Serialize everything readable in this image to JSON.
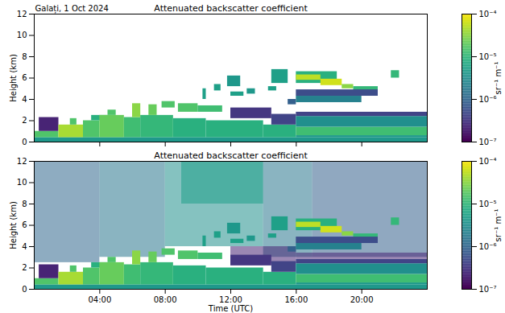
{
  "chart_data": [
    {
      "type": "heatmap",
      "title": "Attenuated backscatter coefficient",
      "annotation": "Galați, 1 Oct 2024",
      "ylabel": "Height (km)",
      "xlim": [
        0,
        24
      ],
      "xticks": [
        {
          "value": 4,
          "label": "04:00"
        },
        {
          "value": 8,
          "label": "08:00"
        },
        {
          "value": 12,
          "label": "12:00"
        },
        {
          "value": 16,
          "label": "16:00"
        },
        {
          "value": 20,
          "label": "20:00"
        }
      ],
      "ylim": [
        0,
        12
      ],
      "yticks": [
        0,
        2,
        4,
        6,
        8,
        10,
        12
      ],
      "tick_labels": "y",
      "colorbar": {
        "label": "sr⁻¹ m⁻¹",
        "range": [
          1e-07,
          0.0001
        ],
        "log": true,
        "ticks": [
          {
            "value": 1e-07,
            "label": "10⁻⁷"
          },
          {
            "value": 1e-06,
            "label": "10⁻⁶"
          },
          {
            "value": 1e-05,
            "label": "10⁻⁵"
          },
          {
            "value": 0.0001,
            "label": "10⁻⁴"
          }
        ]
      },
      "cells": [
        {
          "x1": 0,
          "x2": 1.5,
          "y1": 0.4,
          "y2": 1.0,
          "value": 1.5e-05
        },
        {
          "x1": 0.3,
          "x2": 1.5,
          "y1": 1.0,
          "y2": 2.3,
          "value": 2e-07
        },
        {
          "x1": 1.5,
          "x2": 3.0,
          "y1": 0.4,
          "y2": 1.6,
          "value": 4e-05
        },
        {
          "x1": 2.2,
          "x2": 2.6,
          "y1": 1.6,
          "y2": 2.2,
          "value": 1.5e-05
        },
        {
          "x1": 3.0,
          "x2": 4.0,
          "y1": 0.4,
          "y2": 2.0,
          "value": 1.5e-05
        },
        {
          "x1": 3.5,
          "x2": 4.5,
          "y1": 2.0,
          "y2": 2.5,
          "value": 8e-06
        },
        {
          "x1": 4.0,
          "x2": 5.5,
          "y1": 0.4,
          "y2": 2.5,
          "value": 2e-05
        },
        {
          "x1": 4.5,
          "x2": 5.0,
          "y1": 2.5,
          "y2": 3.0,
          "value": 1.5e-05
        },
        {
          "x1": 5.5,
          "x2": 6.5,
          "y1": 0.4,
          "y2": 2.3,
          "value": 1.2e-05
        },
        {
          "x1": 6.0,
          "x2": 6.5,
          "y1": 2.3,
          "y2": 3.6,
          "value": 3e-05
        },
        {
          "x1": 6.5,
          "x2": 8.5,
          "y1": 0.4,
          "y2": 2.5,
          "value": 1e-05
        },
        {
          "x1": 7.0,
          "x2": 7.5,
          "y1": 2.5,
          "y2": 3.5,
          "value": 2e-05
        },
        {
          "x1": 7.8,
          "x2": 8.6,
          "y1": 3.2,
          "y2": 3.8,
          "value": 1.5e-05
        },
        {
          "x1": 8.5,
          "x2": 10.5,
          "y1": 0.4,
          "y2": 2.2,
          "value": 8e-06
        },
        {
          "x1": 8.8,
          "x2": 10.0,
          "y1": 2.8,
          "y2": 3.6,
          "value": 1.5e-05
        },
        {
          "x1": 10.0,
          "x2": 11.5,
          "y1": 2.8,
          "y2": 3.4,
          "value": 1.2e-05
        },
        {
          "x1": 10.3,
          "x2": 10.5,
          "y1": 4.0,
          "y2": 5.0,
          "value": 5e-06
        },
        {
          "x1": 11.0,
          "x2": 11.4,
          "y1": 4.8,
          "y2": 5.4,
          "value": 5e-06
        },
        {
          "x1": 11.8,
          "x2": 12.6,
          "y1": 5.2,
          "y2": 6.2,
          "value": 4e-06
        },
        {
          "x1": 12.0,
          "x2": 12.8,
          "y1": 4.3,
          "y2": 4.7,
          "value": 5e-06
        },
        {
          "x1": 10.5,
          "x2": 14.0,
          "y1": 0.4,
          "y2": 2.0,
          "value": 8e-06
        },
        {
          "x1": 12.0,
          "x2": 14.5,
          "y1": 2.2,
          "y2": 3.2,
          "value": 3e-07
        },
        {
          "x1": 14.0,
          "x2": 16.0,
          "y1": 0.4,
          "y2": 1.6,
          "value": 8e-06
        },
        {
          "x1": 14.5,
          "x2": 16.0,
          "y1": 1.6,
          "y2": 2.6,
          "value": 4e-07
        },
        {
          "x1": 13.0,
          "x2": 13.5,
          "y1": 4.5,
          "y2": 5.0,
          "value": 4e-06
        },
        {
          "x1": 14.3,
          "x2": 14.8,
          "y1": 4.8,
          "y2": 5.2,
          "value": 5e-06
        },
        {
          "x1": 14.5,
          "x2": 15.5,
          "y1": 5.5,
          "y2": 6.8,
          "value": 5e-06
        },
        {
          "x1": 15.5,
          "x2": 16.0,
          "y1": 3.5,
          "y2": 4.0,
          "value": 8e-07
        },
        {
          "x1": 16.0,
          "x2": 24.0,
          "y1": 0.4,
          "y2": 0.6,
          "value": 4e-06
        },
        {
          "x1": 16.0,
          "x2": 24.0,
          "y1": 0.6,
          "y2": 1.4,
          "value": 1.2e-05
        },
        {
          "x1": 16.0,
          "x2": 24.0,
          "y1": 1.4,
          "y2": 2.4,
          "value": 3e-06
        },
        {
          "x1": 16.0,
          "x2": 24.0,
          "y1": 2.4,
          "y2": 2.8,
          "value": 4e-07
        },
        {
          "x1": 0,
          "x2": 24.0,
          "y1": 0,
          "y2": 0.4,
          "value": 4e-06
        },
        {
          "x1": 16.0,
          "x2": 18.5,
          "y1": 5.5,
          "y2": 6.6,
          "value": 8e-06
        },
        {
          "x1": 16.0,
          "x2": 17.5,
          "y1": 5.8,
          "y2": 6.3,
          "value": 5e-05
        },
        {
          "x1": 17.5,
          "x2": 18.8,
          "y1": 5.3,
          "y2": 5.9,
          "value": 6e-05
        },
        {
          "x1": 18.8,
          "x2": 19.5,
          "y1": 5.0,
          "y2": 5.4,
          "value": 3e-05
        },
        {
          "x1": 19.5,
          "x2": 21.0,
          "y1": 4.8,
          "y2": 5.2,
          "value": 1e-05
        },
        {
          "x1": 16.0,
          "x2": 20.0,
          "y1": 3.7,
          "y2": 4.3,
          "value": 2e-06
        },
        {
          "x1": 16.0,
          "x2": 21.0,
          "y1": 4.3,
          "y2": 4.9,
          "value": 5e-07
        },
        {
          "x1": 21.8,
          "x2": 22.3,
          "y1": 6.0,
          "y2": 6.7,
          "value": 1e-05
        }
      ]
    },
    {
      "type": "heatmap",
      "title": "Attenuated backscatter coefficient",
      "xlabel": "Time (UTC)",
      "ylabel": "Height (km)",
      "xlim": [
        0,
        24
      ],
      "xticks": [
        {
          "value": 4,
          "label": "04:00"
        },
        {
          "value": 8,
          "label": "08:00"
        },
        {
          "value": 12,
          "label": "12:00"
        },
        {
          "value": 16,
          "label": "16:00"
        },
        {
          "value": 20,
          "label": "20:00"
        }
      ],
      "ylim": [
        0,
        12
      ],
      "yticks": [
        0,
        2,
        4,
        6,
        8,
        10,
        12
      ],
      "colorbar": {
        "label": "sr⁻¹ m⁻¹",
        "range": [
          1e-07,
          0.0001
        ],
        "log": true,
        "ticks": [
          {
            "value": 1e-07,
            "label": "10⁻⁷"
          },
          {
            "value": 1e-06,
            "label": "10⁻⁶"
          },
          {
            "value": 1e-05,
            "label": "10⁻⁵"
          },
          {
            "value": 0.0001,
            "label": "10⁻⁴"
          }
        ]
      },
      "noise": [
        {
          "x1": 0,
          "x2": 4,
          "y1": 2.5,
          "y2": 12,
          "value": 1e-06
        },
        {
          "x1": 4,
          "x2": 8,
          "y1": 3,
          "y2": 12,
          "value": 1.5e-06
        },
        {
          "x1": 8,
          "x2": 14,
          "y1": 4,
          "y2": 12,
          "value": 3e-06
        },
        {
          "x1": 9,
          "x2": 14,
          "y1": 8,
          "y2": 12,
          "value": 5e-06
        },
        {
          "x1": 14,
          "x2": 17,
          "y1": 3,
          "y2": 12,
          "value": 1.5e-06
        },
        {
          "x1": 17,
          "x2": 24,
          "y1": 3,
          "y2": 12,
          "value": 8e-07
        },
        {
          "x1": 12,
          "x2": 16,
          "y1": 2.4,
          "y2": 4,
          "value": 2e-07
        },
        {
          "x1": 16,
          "x2": 24,
          "y1": 2.8,
          "y2": 3.4,
          "value": 2e-07
        }
      ],
      "cells": [
        {
          "x1": 0,
          "x2": 1.5,
          "y1": 0.4,
          "y2": 1.0,
          "value": 1.5e-05
        },
        {
          "x1": 0.3,
          "x2": 1.5,
          "y1": 1.0,
          "y2": 2.3,
          "value": 2e-07
        },
        {
          "x1": 1.5,
          "x2": 3.0,
          "y1": 0.4,
          "y2": 1.6,
          "value": 4e-05
        },
        {
          "x1": 2.2,
          "x2": 2.6,
          "y1": 1.6,
          "y2": 2.2,
          "value": 1.5e-05
        },
        {
          "x1": 3.0,
          "x2": 4.0,
          "y1": 0.4,
          "y2": 2.0,
          "value": 1.5e-05
        },
        {
          "x1": 3.5,
          "x2": 4.5,
          "y1": 2.0,
          "y2": 2.5,
          "value": 8e-06
        },
        {
          "x1": 4.0,
          "x2": 5.5,
          "y1": 0.4,
          "y2": 2.5,
          "value": 2e-05
        },
        {
          "x1": 4.5,
          "x2": 5.0,
          "y1": 2.5,
          "y2": 3.0,
          "value": 1.5e-05
        },
        {
          "x1": 5.5,
          "x2": 6.5,
          "y1": 0.4,
          "y2": 2.3,
          "value": 1.2e-05
        },
        {
          "x1": 6.0,
          "x2": 6.5,
          "y1": 2.3,
          "y2": 3.6,
          "value": 3e-05
        },
        {
          "x1": 6.5,
          "x2": 8.5,
          "y1": 0.4,
          "y2": 2.5,
          "value": 1e-05
        },
        {
          "x1": 7.0,
          "x2": 7.5,
          "y1": 2.5,
          "y2": 3.5,
          "value": 2e-05
        },
        {
          "x1": 7.8,
          "x2": 8.6,
          "y1": 3.2,
          "y2": 3.8,
          "value": 1.5e-05
        },
        {
          "x1": 8.5,
          "x2": 10.5,
          "y1": 0.4,
          "y2": 2.2,
          "value": 8e-06
        },
        {
          "x1": 8.8,
          "x2": 10.0,
          "y1": 2.8,
          "y2": 3.6,
          "value": 1.5e-05
        },
        {
          "x1": 10.0,
          "x2": 11.5,
          "y1": 2.8,
          "y2": 3.4,
          "value": 1.2e-05
        },
        {
          "x1": 10.3,
          "x2": 10.5,
          "y1": 4.0,
          "y2": 5.0,
          "value": 5e-06
        },
        {
          "x1": 11.0,
          "x2": 11.4,
          "y1": 4.8,
          "y2": 5.4,
          "value": 5e-06
        },
        {
          "x1": 11.8,
          "x2": 12.6,
          "y1": 5.2,
          "y2": 6.2,
          "value": 4e-06
        },
        {
          "x1": 12.0,
          "x2": 12.8,
          "y1": 4.3,
          "y2": 4.7,
          "value": 5e-06
        },
        {
          "x1": 10.5,
          "x2": 14.0,
          "y1": 0.4,
          "y2": 2.0,
          "value": 8e-06
        },
        {
          "x1": 12.0,
          "x2": 14.5,
          "y1": 2.2,
          "y2": 3.2,
          "value": 3e-07
        },
        {
          "x1": 14.0,
          "x2": 16.0,
          "y1": 0.4,
          "y2": 1.6,
          "value": 8e-06
        },
        {
          "x1": 14.5,
          "x2": 16.0,
          "y1": 1.6,
          "y2": 2.6,
          "value": 4e-07
        },
        {
          "x1": 13.0,
          "x2": 13.5,
          "y1": 4.5,
          "y2": 5.0,
          "value": 4e-06
        },
        {
          "x1": 14.3,
          "x2": 14.8,
          "y1": 4.8,
          "y2": 5.2,
          "value": 5e-06
        },
        {
          "x1": 14.5,
          "x2": 15.5,
          "y1": 5.5,
          "y2": 6.8,
          "value": 5e-06
        },
        {
          "x1": 15.5,
          "x2": 16.0,
          "y1": 3.5,
          "y2": 4.0,
          "value": 8e-07
        },
        {
          "x1": 16.0,
          "x2": 24.0,
          "y1": 0.4,
          "y2": 0.6,
          "value": 4e-06
        },
        {
          "x1": 16.0,
          "x2": 24.0,
          "y1": 0.6,
          "y2": 1.4,
          "value": 1.2e-05
        },
        {
          "x1": 16.0,
          "x2": 24.0,
          "y1": 1.4,
          "y2": 2.4,
          "value": 3e-06
        },
        {
          "x1": 16.0,
          "x2": 24.0,
          "y1": 2.4,
          "y2": 2.8,
          "value": 4e-07
        },
        {
          "x1": 0,
          "x2": 24.0,
          "y1": 0,
          "y2": 0.4,
          "value": 4e-06
        },
        {
          "x1": 16.0,
          "x2": 18.5,
          "y1": 5.5,
          "y2": 6.6,
          "value": 8e-06
        },
        {
          "x1": 16.0,
          "x2": 17.5,
          "y1": 5.8,
          "y2": 6.3,
          "value": 5e-05
        },
        {
          "x1": 17.5,
          "x2": 18.8,
          "y1": 5.3,
          "y2": 5.9,
          "value": 6e-05
        },
        {
          "x1": 18.8,
          "x2": 19.5,
          "y1": 5.0,
          "y2": 5.4,
          "value": 3e-05
        },
        {
          "x1": 19.5,
          "x2": 21.0,
          "y1": 4.8,
          "y2": 5.2,
          "value": 1e-05
        },
        {
          "x1": 16.0,
          "x2": 20.0,
          "y1": 3.7,
          "y2": 4.3,
          "value": 2e-06
        },
        {
          "x1": 16.0,
          "x2": 21.0,
          "y1": 4.3,
          "y2": 4.9,
          "value": 5e-07
        },
        {
          "x1": 21.8,
          "x2": 22.3,
          "y1": 6.0,
          "y2": 6.7,
          "value": 1e-05
        }
      ]
    }
  ]
}
